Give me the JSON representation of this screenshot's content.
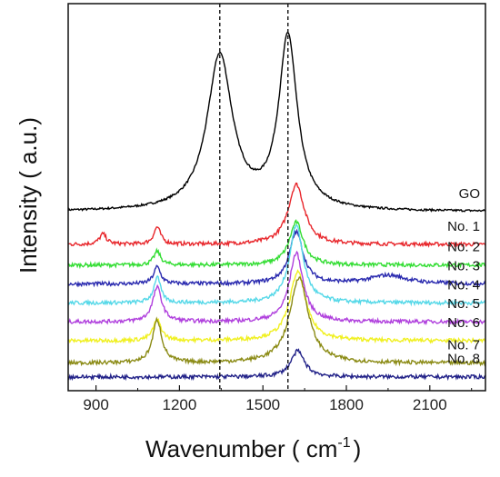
{
  "chart_data": {
    "type": "line",
    "title": "",
    "xlabel": "Wavenumber ( cm",
    "xlabel_sup": "-1",
    "xlabel_end": ")",
    "ylabel": "Intensity ( a.u.)",
    "xlim": [
      800,
      2300
    ],
    "x_ticks": [
      900,
      1200,
      1500,
      1800,
      2100
    ],
    "y_ticks_shown": false,
    "grid": false,
    "reference_lines_x": [
      1345,
      1590
    ],
    "series": [
      {
        "name": "GO",
        "color": "#000000",
        "baseline": 0.94,
        "peaks": [
          {
            "x": 1345,
            "height": 0.9,
            "width": 55
          },
          {
            "x": 1590,
            "height": 1.0,
            "width": 40
          }
        ]
      },
      {
        "name": "No. 1",
        "color": "#e8262b",
        "baseline": 0.75,
        "peaks": [
          {
            "x": 925,
            "height": 0.06,
            "width": 15
          },
          {
            "x": 1120,
            "height": 0.1,
            "width": 15
          },
          {
            "x": 1620,
            "height": 0.35,
            "width": 35
          }
        ]
      },
      {
        "name": "No. 2",
        "color": "#33dd33",
        "baseline": 0.63,
        "peaks": [
          {
            "x": 1120,
            "height": 0.08,
            "width": 15
          },
          {
            "x": 1620,
            "height": 0.25,
            "width": 30
          }
        ]
      },
      {
        "name": "No. 3",
        "color": "#2a2aaf",
        "baseline": 0.52,
        "peaks": [
          {
            "x": 1120,
            "height": 0.1,
            "width": 15
          },
          {
            "x": 1620,
            "height": 0.3,
            "width": 30
          },
          {
            "x": 1950,
            "height": 0.05,
            "width": 80
          }
        ]
      },
      {
        "name": "No. 4",
        "color": "#55d8e8",
        "baseline": 0.41,
        "peaks": [
          {
            "x": 1120,
            "height": 0.15,
            "width": 15
          },
          {
            "x": 1620,
            "height": 0.45,
            "width": 30
          }
        ]
      },
      {
        "name": "No. 5",
        "color": "#b040dd",
        "baseline": 0.3,
        "peaks": [
          {
            "x": 1120,
            "height": 0.2,
            "width": 20
          },
          {
            "x": 1620,
            "height": 0.4,
            "width": 30
          }
        ]
      },
      {
        "name": "No. 6",
        "color": "#f0f020",
        "baseline": 0.19,
        "peaks": [
          {
            "x": 1120,
            "height": 0.12,
            "width": 18
          },
          {
            "x": 1625,
            "height": 0.4,
            "width": 35
          }
        ]
      },
      {
        "name": "No. 7",
        "color": "#8b8b15",
        "baseline": 0.06,
        "peaks": [
          {
            "x": 1120,
            "height": 0.25,
            "width": 20
          },
          {
            "x": 1630,
            "height": 0.5,
            "width": 40
          }
        ]
      },
      {
        "name": "No. 8",
        "color": "#222288",
        "baseline": -0.02,
        "peaks": [
          {
            "x": 1625,
            "height": 0.15,
            "width": 30
          }
        ]
      }
    ]
  }
}
